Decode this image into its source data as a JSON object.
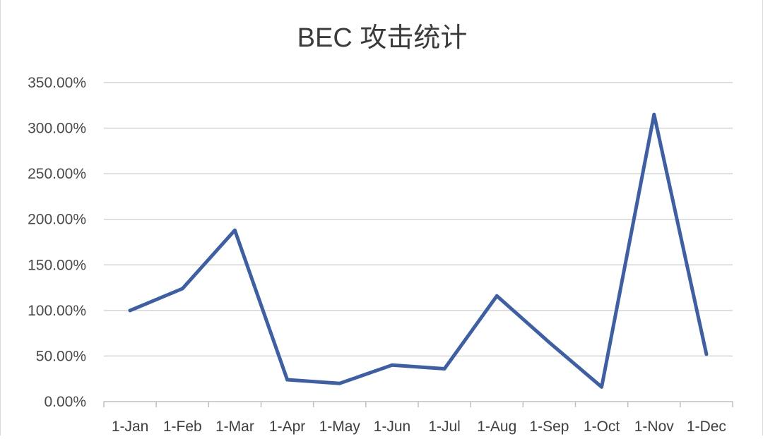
{
  "chart_data": {
    "type": "line",
    "title": "BEC 攻击统计",
    "categories": [
      "1-Jan",
      "1-Feb",
      "1-Mar",
      "1-Apr",
      "1-May",
      "1-Jun",
      "1-Jul",
      "1-Aug",
      "1-Sep",
      "1-Oct",
      "1-Nov",
      "1-Dec"
    ],
    "series": [
      {
        "values": [
          100,
          124,
          188,
          24,
          20,
          40,
          36,
          116,
          65,
          16,
          315,
          52
        ],
        "color": "#3d5fa8"
      }
    ],
    "y_ticks": [
      "0.00%",
      "50.00%",
      "100.00%",
      "150.00%",
      "200.00%",
      "250.00%",
      "300.00%",
      "350.00%"
    ],
    "ylim": [
      0,
      350
    ],
    "xlabel": "",
    "ylabel": "",
    "grid": true,
    "legend": "none"
  }
}
